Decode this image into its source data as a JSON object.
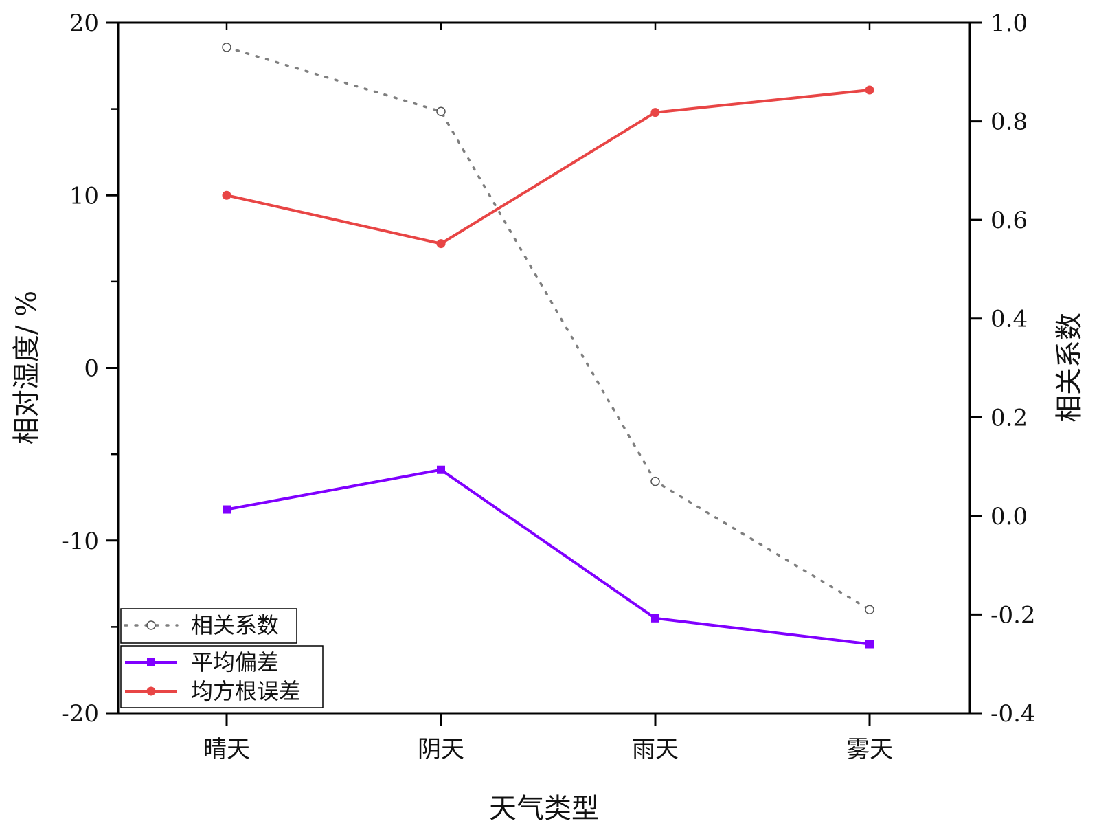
{
  "chart_data": {
    "type": "line",
    "categories": [
      "晴天",
      "阴天",
      "雨天",
      "雾天"
    ],
    "xlabel": "天气类型",
    "ylabel_left": "相对湿度/ %",
    "ylabel_right": "相关系数",
    "ylim_left": [
      -20,
      20
    ],
    "ylim_right": [
      -0.4,
      1.0
    ],
    "yticks_left": [
      "20",
      "10",
      "0",
      "-10",
      "-20"
    ],
    "yticks_right": [
      "1.0",
      "0.8",
      "0.6",
      "0.4",
      "0.2",
      "0.0",
      "-0.2",
      "-0.4"
    ],
    "grid": false,
    "legend_position": "bottom-left",
    "series": [
      {
        "name": "相关系数",
        "axis": "right",
        "style": "dotted",
        "marker": "open-circle",
        "color": "#7f7f7f",
        "values": [
          0.95,
          0.82,
          0.07,
          -0.19
        ]
      },
      {
        "name": "平均偏差",
        "axis": "left",
        "style": "solid",
        "marker": "square",
        "color": "#8000ff",
        "values": [
          -8.2,
          -5.9,
          -14.5,
          -16.0
        ]
      },
      {
        "name": "均方根误差",
        "axis": "left",
        "style": "solid",
        "marker": "circle",
        "color": "#e84545",
        "values": [
          10.0,
          7.2,
          14.8,
          16.1
        ]
      }
    ]
  }
}
